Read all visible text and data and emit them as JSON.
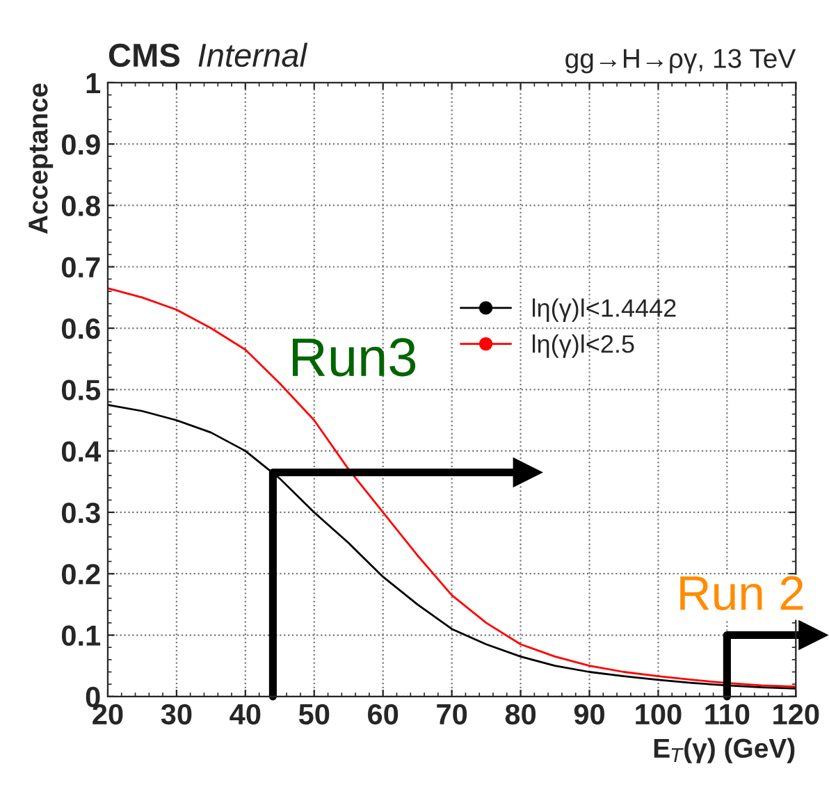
{
  "chart_data": {
    "type": "line",
    "title": "CMS",
    "subtitle": "Internal",
    "xlabel": "E$_{T}$(γ) (GeV)",
    "ylabel": "Acceptance",
    "x": [
      20,
      25,
      30,
      35,
      40,
      45,
      50,
      55,
      60,
      65,
      70,
      75,
      80,
      85,
      90,
      95,
      100,
      105,
      110,
      115,
      120
    ],
    "series": [
      {
        "name": "lη(γ)l<1.4442",
        "color": "#000000",
        "values": [
          0.475,
          0.465,
          0.45,
          0.43,
          0.4,
          0.355,
          0.3,
          0.25,
          0.195,
          0.15,
          0.11,
          0.085,
          0.065,
          0.05,
          0.04,
          0.033,
          0.027,
          0.022,
          0.018,
          0.015,
          0.013
        ]
      },
      {
        "name": "lη(γ)l<2.5",
        "color": "#ff0000",
        "values": [
          0.665,
          0.65,
          0.63,
          0.6,
          0.565,
          0.51,
          0.45,
          0.37,
          0.3,
          0.23,
          0.165,
          0.12,
          0.085,
          0.065,
          0.05,
          0.04,
          0.033,
          0.027,
          0.022,
          0.018,
          0.016
        ]
      }
    ],
    "annotations": [
      "gg→H→ργ, 13 TeV",
      {
        "text": "Run3",
        "x": 44,
        "y": 0.365
      }
    ],
    "ref_lines": [
      {
        "axis": "x",
        "value": 110,
        "label": "Run 2"
      }
    ],
    "xlim": [
      20,
      120
    ],
    "xticks": [
      20,
      30,
      40,
      50,
      60,
      70,
      80,
      90,
      100,
      110,
      120
    ],
    "ylim": [
      0,
      1
    ],
    "yticks": [
      0,
      0.1,
      0.2,
      0.3,
      0.4,
      0.5,
      0.6,
      0.7,
      0.8,
      0.9,
      1
    ],
    "grid": true,
    "legend": "right"
  }
}
